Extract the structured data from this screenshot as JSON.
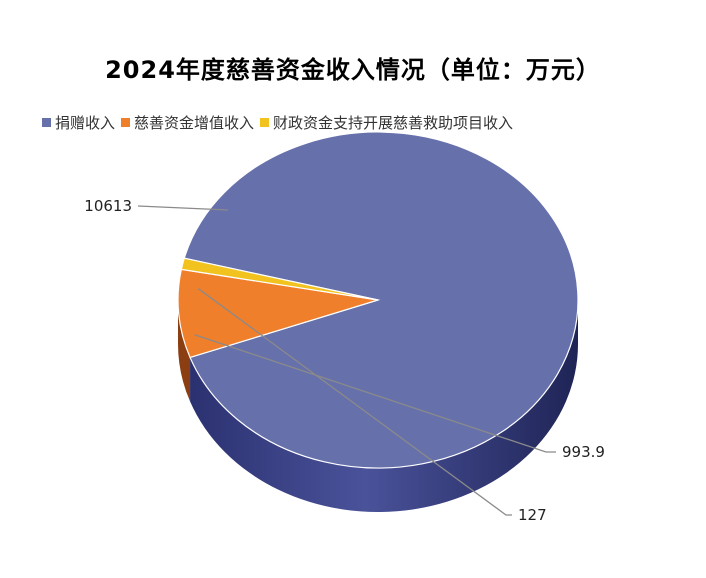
{
  "chart_data": {
    "type": "pie",
    "title": "2024年度慈善资金收入情况（单位：万元）",
    "categories": [
      "捐赠收入",
      "慈善资金增值收入",
      "财政资金支持开展慈善救助项目收入"
    ],
    "values": [
      10613,
      993.9,
      127
    ],
    "value_labels": [
      "10613",
      "993.9",
      "127"
    ],
    "colors": [
      "#6670ab",
      "#f07f2c",
      "#f2c31f"
    ],
    "legend_position": "top-left",
    "style": "3d"
  }
}
